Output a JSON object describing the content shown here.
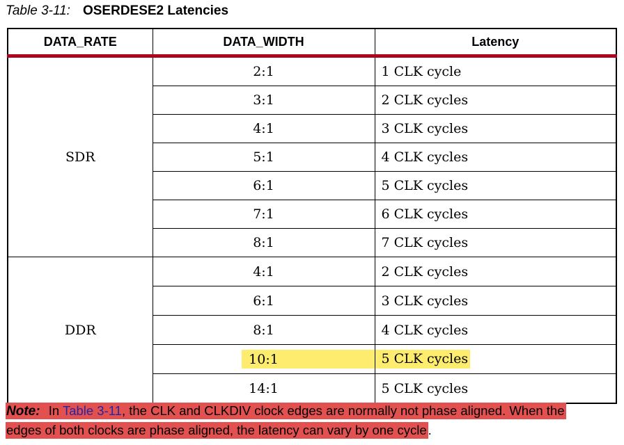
{
  "caption": {
    "label": "Table 3-11:",
    "title": "OSERDESE2 Latencies"
  },
  "table": {
    "headers": [
      "DATA_RATE",
      "DATA_WIDTH",
      "Latency"
    ],
    "sections": [
      {
        "data_rate": "SDR",
        "rows": [
          {
            "width": "2:1",
            "latency": "1 CLK cycle",
            "highlighted": false
          },
          {
            "width": "3:1",
            "latency": "2 CLK cycles",
            "highlighted": false
          },
          {
            "width": "4:1",
            "latency": "3 CLK cycles",
            "highlighted": false
          },
          {
            "width": "5:1",
            "latency": "4 CLK cycles",
            "highlighted": false
          },
          {
            "width": "6:1",
            "latency": "5 CLK cycles",
            "highlighted": false
          },
          {
            "width": "7:1",
            "latency": "6 CLK cycles",
            "highlighted": false
          },
          {
            "width": "8:1",
            "latency": "7 CLK cycles",
            "highlighted": false
          }
        ]
      },
      {
        "data_rate": "DDR",
        "rows": [
          {
            "width": "4:1",
            "latency": "2 CLK cycles",
            "highlighted": false
          },
          {
            "width": "6:1",
            "latency": "3 CLK cycles",
            "highlighted": false
          },
          {
            "width": "8:1",
            "latency": "4 CLK cycles",
            "highlighted": false
          },
          {
            "width": "10:1",
            "latency": "5 CLK cycles",
            "highlighted": true
          },
          {
            "width": "14:1",
            "latency": "5 CLK cycles",
            "highlighted": false
          }
        ]
      }
    ]
  },
  "note": {
    "label": "Note:",
    "line1_pre_link": " In ",
    "link": "Table 3-11",
    "line1_post_link": ", the CLK and CLKDIV clock edges are normally not phase aligned. When the",
    "line2_highlight": "edges of both clocks are phase aligned, the latency can vary by one cycle",
    "line2_tail": "."
  },
  "colors": {
    "header_rule_red": "#ad001c",
    "highlight_yellow": "#fdec6e",
    "note_highlight_red": "#e25050",
    "link_blue": "#2626a0",
    "table_border": "#000000"
  }
}
